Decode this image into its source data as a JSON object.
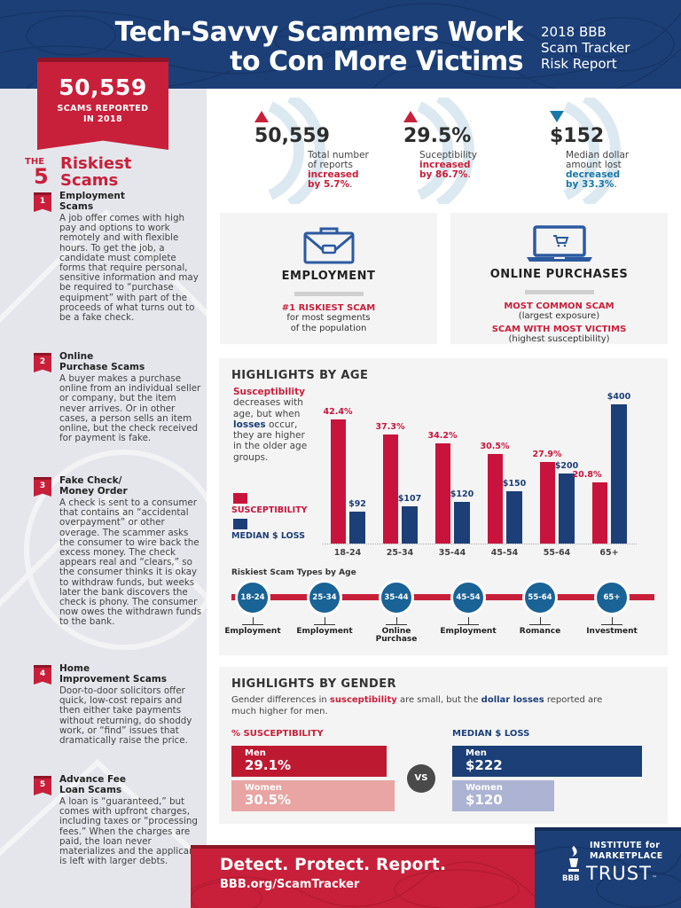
{
  "header": {
    "title_line1": "Tech-Savvy Scammers Work",
    "title_line2": "to Con More Victims",
    "subtitle_line1": "2018 BBB",
    "subtitle_line2": "Scam Tracker",
    "subtitle_line3": "Risk Report"
  },
  "banner": {
    "number": "50,559",
    "label_line1": "SCAMS REPORTED",
    "label_line2": "IN 2018"
  },
  "riskiest": {
    "the": "THE",
    "five": "5",
    "title_line1": "Riskiest",
    "title_line2": "Scams",
    "items": [
      {
        "num": "1",
        "name_line1": "Employment",
        "name_line2": "Scams",
        "desc": "A job offer comes with high pay and options to work remotely and with flexible hours. To get the job, a candidate must complete forms that require personal, sensitive information and may be required to “purchase equipment” with part of the proceeds of what turns out to be a fake check."
      },
      {
        "num": "2",
        "name_line1": "Online",
        "name_line2": "Purchase Scams",
        "desc": "A buyer makes a purchase online from an individual seller or company, but the item never arrives. Or in other cases, a person sells an item online, but the check received for payment is fake."
      },
      {
        "num": "3",
        "name_line1": "Fake Check/",
        "name_line2": "Money Order",
        "desc": "A check is sent to a consumer that contains an “accidental overpayment” or other overage. The scammer asks the consumer to wire back the excess money. The check appears real and “clears,” so the consumer thinks it is okay to withdraw funds, but weeks later the bank discovers the check is phony. The consumer now owes the withdrawn funds to the bank."
      },
      {
        "num": "4",
        "name_line1": "Home",
        "name_line2": "Improvement Scams",
        "desc": "Door-to-door solicitors offer quick, low-cost repairs and then either take payments without returning, do shoddy work, or “find” issues that dramatically raise the price."
      },
      {
        "num": "5",
        "name_line1": "Advance Fee",
        "name_line2": "Loan Scams",
        "desc": "A loan is “guaranteed,” but comes with upfront charges, including taxes or “processing fees.” When the charges are paid, the loan never materializes and the applicant is left with larger debts."
      }
    ]
  },
  "stats": [
    {
      "value": "50,559",
      "direction": "up",
      "desc_line1": "Total number",
      "desc_line2": "of reports",
      "change_line1": "increased",
      "change_line2": "by 5.7%",
      "period": "."
    },
    {
      "value": "29.5%",
      "direction": "up",
      "desc_line1": "Suceptibility",
      "desc_line2": "",
      "change_line1": "increased",
      "change_line2": "by 86.7%",
      "period": "."
    },
    {
      "value": "$152",
      "direction": "down",
      "desc_line1": "Median dollar",
      "desc_line2": "amount lost",
      "change_line1": "decreased",
      "change_line2": "by 33.3%",
      "period": "."
    }
  ],
  "cards": {
    "employment": {
      "icon": "briefcase-icon",
      "title": "EMPLOYMENT",
      "red_line": "#1 RISKIEST SCAM",
      "gray_line1": "for most segments",
      "gray_line2": "of the population"
    },
    "online": {
      "icon": "laptop-cart-icon",
      "title": "ONLINE PURCHASES",
      "red_line1": "MOST COMMON SCAM",
      "gray_line1": "(largest exposure)",
      "red_line2": "SCAM WITH MOST VICTIMS",
      "gray_line2": "(highest susceptibility)"
    }
  },
  "age": {
    "title": "HIGHLIGHTS BY AGE",
    "intro_red": "Susceptibility",
    "intro_1": " decreases with age, but when ",
    "intro_blue": "losses",
    "intro_2": " occur, they are higher in the older age groups.",
    "legend_susceptibility": "SUSCEPTIBILITY",
    "legend_loss": "MEDIAN $ LOSS",
    "timeline_title": "Riskiest Scam Types by Age",
    "timeline": [
      {
        "age": "18-24",
        "scam_line1": "Employment",
        "scam_line2": ""
      },
      {
        "age": "25-34",
        "scam_line1": "Employment",
        "scam_line2": ""
      },
      {
        "age": "35-44",
        "scam_line1": "Online",
        "scam_line2": "Purchase"
      },
      {
        "age": "45-54",
        "scam_line1": "Employment",
        "scam_line2": ""
      },
      {
        "age": "55-64",
        "scam_line1": "Romance",
        "scam_line2": ""
      },
      {
        "age": "65+",
        "scam_line1": "Investment",
        "scam_line2": ""
      }
    ]
  },
  "chart_data": {
    "type": "bar",
    "title": "HIGHLIGHTS BY AGE",
    "categories": [
      "18-24",
      "25-34",
      "35-44",
      "45-54",
      "55-64",
      "65+"
    ],
    "series": [
      {
        "name": "SUSCEPTIBILITY",
        "color": "#c8143c",
        "values": [
          42.4,
          37.3,
          34.2,
          30.5,
          27.9,
          20.8
        ],
        "labels": [
          "42.4%",
          "37.3%",
          "34.2%",
          "30.5%",
          "27.9%",
          "20.8%"
        ]
      },
      {
        "name": "MEDIAN $ LOSS",
        "color": "#1c3f77",
        "values": [
          92,
          107,
          120,
          150,
          200,
          400
        ],
        "labels": [
          "$92",
          "$107",
          "$120",
          "$150",
          "$200",
          "$400"
        ]
      }
    ],
    "xlabel": "",
    "ylabel": "",
    "grid": false,
    "legend_position": "left"
  },
  "gender": {
    "title": "HIGHLIGHTS BY GENDER",
    "intro_1": "Gender differences in ",
    "intro_red": "susceptibility",
    "intro_2": " are small, but the ",
    "intro_blue": "dollar losses",
    "intro_3": " reported are much higher for men.",
    "susc_title": "% SUSCEPTIBILITY",
    "loss_title": "MEDIAN $ LOSS",
    "vs": "VS",
    "susc": [
      {
        "label": "Men",
        "value": "29.1%"
      },
      {
        "label": "Women",
        "value": "30.5%"
      }
    ],
    "loss": [
      {
        "label": "Men",
        "value": "$222"
      },
      {
        "label": "Women",
        "value": "$120"
      }
    ]
  },
  "footer": {
    "cta": "Detect. Protect. Report.",
    "url": "BBB.org/ScamTracker",
    "logo_line1": "INSTITUTE for",
    "logo_line2": "MARKETPLACE",
    "logo_line3": "TRUST",
    "logo_bbb": "BBB",
    "tm": "™"
  },
  "colors": {
    "navy": "#1c3f77",
    "red": "#c8203a",
    "teal_blue": "#1a6397",
    "light_bg": "#f4f4f4",
    "sidebar_bg": "#e5e6ec"
  }
}
